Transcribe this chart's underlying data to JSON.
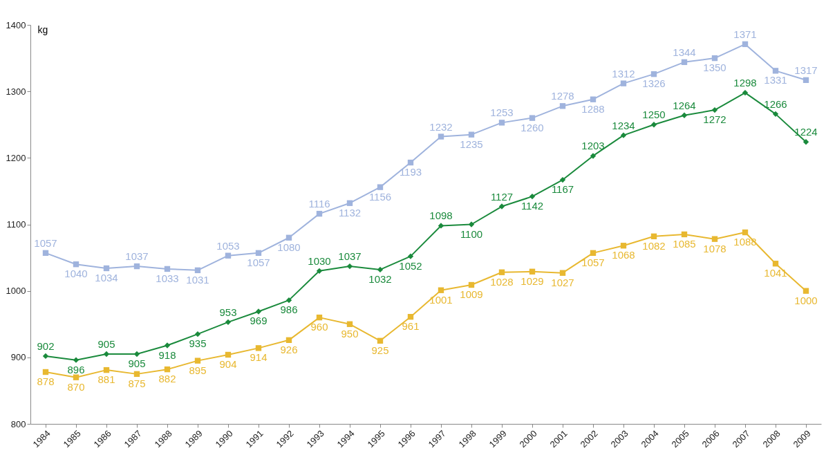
{
  "chart_data": {
    "type": "line",
    "ylabel": "kg",
    "categories": [
      "1984",
      "1985",
      "1986",
      "1987",
      "1988",
      "1989",
      "1990",
      "1991",
      "1992",
      "1993",
      "1994",
      "1995",
      "1996",
      "1997",
      "1998",
      "1999",
      "2000",
      "2001",
      "2002",
      "2003",
      "2004",
      "2005",
      "2006",
      "2007",
      "2008",
      "2009"
    ],
    "series": [
      {
        "color": "#9fb3dd",
        "marker": "square",
        "values": [
          1057,
          1040,
          1034,
          1037,
          1033,
          1031,
          1053,
          1057,
          1080,
          1116,
          1132,
          1156,
          1193,
          1232,
          1235,
          1253,
          1260,
          1278,
          1288,
          1312,
          1326,
          1344,
          1350,
          1371,
          1331,
          1317
        ]
      },
      {
        "color": "#1a8a3c",
        "marker": "diamond",
        "values": [
          902,
          896,
          905,
          905,
          918,
          935,
          953,
          969,
          986,
          1030,
          1037,
          1032,
          1052,
          1098,
          1100,
          1127,
          1142,
          1167,
          1203,
          1234,
          1250,
          1264,
          1272,
          1298,
          1266,
          1224
        ]
      },
      {
        "color": "#e8b830",
        "marker": "square",
        "values": [
          878,
          870,
          881,
          875,
          882,
          895,
          904,
          914,
          926,
          960,
          950,
          925,
          961,
          1001,
          1009,
          1028,
          1029,
          1027,
          1057,
          1068,
          1082,
          1085,
          1078,
          1088,
          1041,
          1000
        ]
      }
    ],
    "ylim": [
      800,
      1400
    ],
    "yticks": [
      800,
      900,
      1000,
      1100,
      1200,
      1300,
      1400
    ],
    "grid": false,
    "data_labels": true,
    "line_style": "solid"
  }
}
